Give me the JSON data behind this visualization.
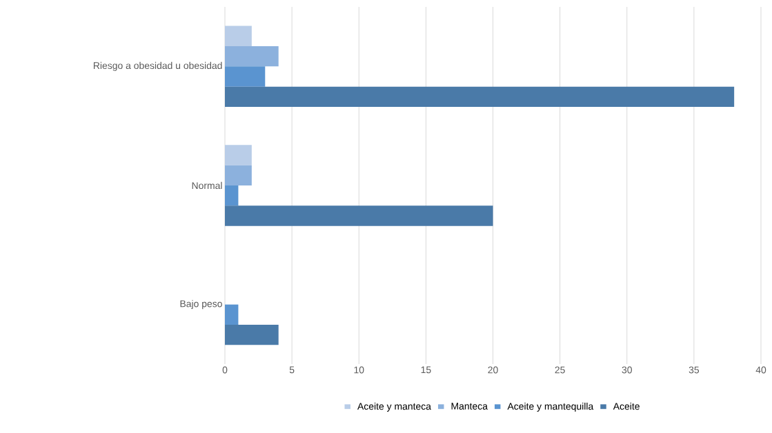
{
  "chart_data": {
    "type": "bar",
    "orientation": "horizontal",
    "categories": [
      "Riesgo a obesidad u obesidad",
      "Normal",
      "Bajo peso"
    ],
    "series": [
      {
        "name": "Aceite y manteca",
        "color": "#b9cde8",
        "values": [
          2,
          2,
          0
        ]
      },
      {
        "name": "Manteca",
        "color": "#8cb1dd",
        "values": [
          4,
          2,
          0
        ]
      },
      {
        "name": "Aceite y mantequilla",
        "color": "#5a94d0",
        "values": [
          3,
          1,
          1
        ]
      },
      {
        "name": "Aceite",
        "color": "#4a7aa8",
        "values": [
          38,
          20,
          4
        ]
      }
    ],
    "xlim": [
      0,
      40
    ],
    "xticks": [
      0,
      5,
      10,
      15,
      20,
      25,
      30,
      35,
      40
    ],
    "grid": "x",
    "legend": "bottom"
  }
}
